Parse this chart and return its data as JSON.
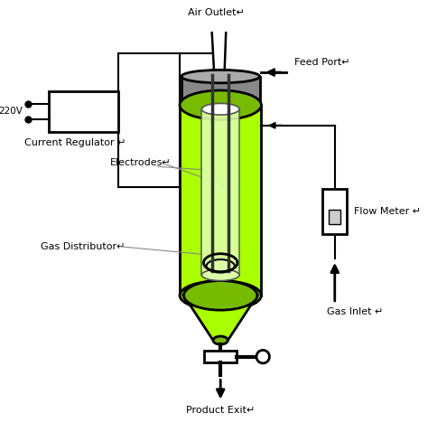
{
  "background_color": "#ffffff",
  "reactor_color": "#aaff00",
  "reactor_dark": "#77bb00",
  "reactor_glass": "#ddffaa",
  "line_color": "#000000",
  "labels": {
    "air_outlet": "Air Outlet↵",
    "feed_port": "Feed Port↵",
    "current_regulator": "Current Regulator ↵",
    "electrodes": "Electrodes↵",
    "gas_distributor": "Gas Distributor↵",
    "flow_meter": "Flow Meter ↵",
    "gas_inlet": "Gas Inlet ↵",
    "product_exit": "Product Exit↵",
    "voltage": "220V"
  },
  "figsize": [
    4.74,
    4.78
  ],
  "dpi": 100
}
